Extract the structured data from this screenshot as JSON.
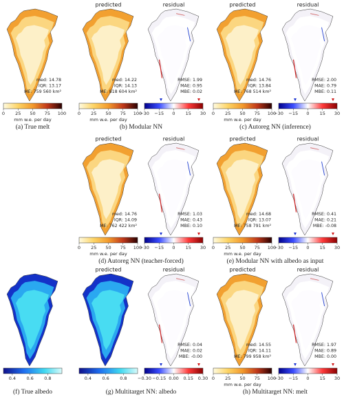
{
  "panels": [
    {
      "caption": "(a) True melt",
      "maps": [
        {
          "cmap": "melt",
          "stats": [
            "med: 14.78",
            "IQR: 13.17",
            "ME: 759 560 km²"
          ],
          "colorbar": {
            "lim": [
              0,
              100
            ],
            "ticks": [
              0,
              25,
              50,
              75,
              100
            ],
            "label": "mm w.e. per day"
          }
        }
      ]
    },
    {
      "caption": "(b) Modular NN",
      "maps": [
        {
          "title": "predicted",
          "cmap": "melt",
          "stats": [
            "med: 14.22",
            "IQR: 14.13",
            "ME: 818 604 km²"
          ],
          "colorbar": {
            "lim": [
              0,
              100
            ],
            "ticks": [
              0,
              25,
              50,
              75,
              100
            ],
            "label": "mm w.e. per day"
          }
        },
        {
          "title": "residual",
          "cmap": "residual",
          "stats": [
            "RMSE: 1.99",
            "MAE: 0.95",
            "MBE: 0.02"
          ],
          "colorbar": {
            "lim": [
              -30,
              30
            ],
            "ticks": [
              {
                "value": -30,
                "label": "−30"
              },
              {
                "value": -15,
                "label": "−15"
              },
              0,
              15,
              30
            ]
          }
        }
      ]
    },
    {
      "caption": "(c) Autoreg NN (inference)",
      "maps": [
        {
          "title": "predicted",
          "cmap": "melt",
          "stats": [
            "med: 14.76",
            "IQR: 13.84",
            "ME: 768 514 km²"
          ],
          "colorbar": {
            "lim": [
              0,
              100
            ],
            "ticks": [
              0,
              25,
              50,
              75,
              100
            ],
            "label": "mm w.e. per day"
          }
        },
        {
          "title": "residual",
          "cmap": "residual",
          "stats": [
            "RMSE: 2.00",
            "MAE: 0.79",
            "MBE: 0.11"
          ],
          "colorbar": {
            "lim": [
              -30,
              30
            ],
            "ticks": [
              {
                "value": -30,
                "label": "−30"
              },
              {
                "value": -15,
                "label": "−15"
              },
              0,
              15,
              30
            ]
          }
        }
      ]
    },
    {
      "caption": "(d) Autoreg NN (teacher-forced)",
      "maps": [
        {
          "title": "predicted",
          "cmap": "melt",
          "stats": [
            "med: 14.76",
            "IQR: 14.09",
            "ME: 762 422 km²"
          ],
          "colorbar": {
            "lim": [
              0,
              100
            ],
            "ticks": [
              0,
              25,
              50,
              75,
              100
            ],
            "label": "mm w.e. per day"
          }
        },
        {
          "title": "residual",
          "cmap": "residual",
          "stats": [
            "RMSE: 1.03",
            "MAE: 0.43",
            "MBE: 0.10"
          ],
          "colorbar": {
            "lim": [
              -30,
              30
            ],
            "ticks": [
              {
                "value": -30,
                "label": "−30"
              },
              {
                "value": -15,
                "label": "−15"
              },
              0,
              15,
              30
            ]
          }
        }
      ]
    },
    {
      "caption": "(e) Modular NN with albedo as input",
      "maps": [
        {
          "title": "predicted",
          "cmap": "melt",
          "stats": [
            "med: 14.68",
            "IQR: 13.07",
            "ME: 758 791 km²"
          ],
          "colorbar": {
            "lim": [
              0,
              100
            ],
            "ticks": [
              0,
              25,
              50,
              75,
              100
            ],
            "label": "mm w.e. per day"
          }
        },
        {
          "title": "residual",
          "cmap": "residual",
          "stats": [
            "RMSE: 0.41",
            "MAE: 0.21",
            "MBE: -0.08"
          ],
          "colorbar": {
            "lim": [
              -30,
              30
            ],
            "ticks": [
              {
                "value": -30,
                "label": "−30"
              },
              {
                "value": -15,
                "label": "−15"
              },
              0,
              15,
              30
            ]
          }
        }
      ]
    },
    {
      "caption": "(f) True albedo",
      "maps": [
        {
          "cmap": "albedo",
          "stats": [],
          "colorbar": {
            "lim": [
              0.3,
              0.96
            ],
            "ticks": [
              0.4,
              0.6,
              0.8
            ]
          }
        }
      ]
    },
    {
      "caption": "(g) Multitarget NN: albedo",
      "maps": [
        {
          "title": "predicted",
          "cmap": "albedo",
          "stats": [],
          "colorbar": {
            "lim": [
              0.3,
              0.96
            ],
            "ticks": [
              0.4,
              0.6,
              0.8
            ]
          }
        },
        {
          "title": "residual",
          "cmap": "residual",
          "stats": [
            "RMSE: 0.04",
            "MAE: 0.02",
            "MBE: -0.00"
          ],
          "colorbar": {
            "lim": [
              -0.3,
              0.3
            ],
            "ticks": [
              {
                "value": -0.3,
                "label": "−0.30"
              },
              {
                "value": -0.15,
                "label": "−0.15"
              },
              {
                "value": 0,
                "label": "0.00"
              },
              {
                "value": 0.15,
                "label": "0.15"
              },
              {
                "value": 0.3,
                "label": "0.30"
              }
            ]
          }
        }
      ]
    },
    {
      "caption": "(h) Multitarget NN: melt",
      "maps": [
        {
          "title": "predicted",
          "cmap": "melt",
          "stats": [
            "med: 14.55",
            "IQR: 14.11",
            "ME: 799 958 km²"
          ],
          "colorbar": {
            "lim": [
              0,
              100
            ],
            "ticks": [
              0,
              25,
              50,
              75,
              100
            ],
            "label": "mm w.e. per day"
          }
        },
        {
          "title": "residual",
          "cmap": "residual",
          "stats": [
            "RMSE: 1.97",
            "MAE: 0.89",
            "MBE: 0.00"
          ],
          "colorbar": {
            "lim": [
              -30,
              30
            ],
            "ticks": [
              {
                "value": -30,
                "label": "−30"
              },
              {
                "value": -15,
                "label": "−15"
              },
              0,
              15,
              30
            ]
          }
        }
      ]
    }
  ]
}
